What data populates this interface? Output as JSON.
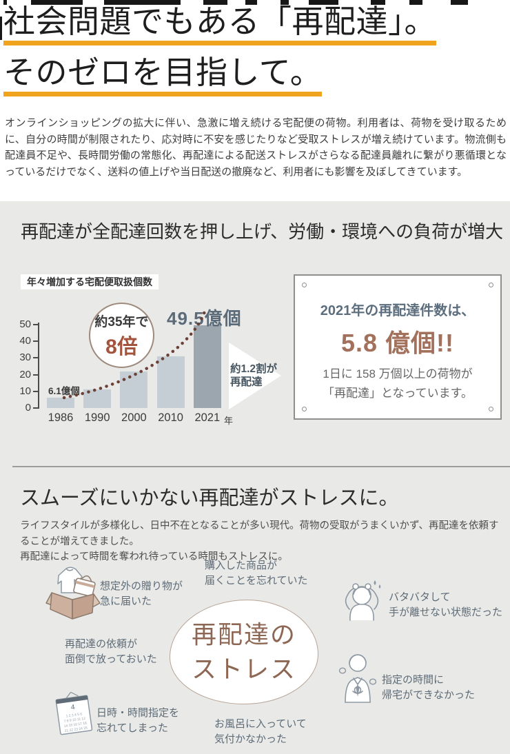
{
  "colors": {
    "accent_underline": "#f0a41e",
    "section_bg": "#e9e9e7",
    "bar": "#c5ced5",
    "bar_highlight": "#9ba6ae",
    "trend_dots": "#6b4036",
    "rust_accent": "#a4543c",
    "stat_number": "#a3705c",
    "stat_title": "#5c6e7e",
    "illustration_stroke": "#8d98a3"
  },
  "hero": {
    "title_line1": "社会問題でもある「再配達」。",
    "title_line2": "そのゼロを目指して。",
    "intro": "オンラインショッピングの拡大に伴い、急激に増え続ける宅配便の荷物。利用者は、荷物を受け取るために、自分の時間が制限されたり、応対時に不安を感じたりなど受取ストレスが増え続けています。物流側も配達員不足や、長時間労働の常態化、再配達による配送ストレスがさらなる配達員離れに繋がり悪循環となっているだけでなく、送料の値上げや当日配送の撤廃など、利用者にも影響を及ぼしてきています。"
  },
  "section1": {
    "heading": "再配達が全配達回数を押し上げ、労働・環境への負荷が増大",
    "chart_title": "年々増加する宅配便取扱個数",
    "first_bar_label": "6.1億個",
    "last_bar_label": "49.5億個",
    "multiplier_badge": {
      "line1": "約35年で",
      "line2": "8倍"
    },
    "arrow_note": "約1.2割が\n再配達",
    "card": {
      "line1": "2021年の再配達件数は、",
      "number": "5.8 億個!!",
      "sub": "1日に 158 万個以上の荷物が\n「再配達」となっています。"
    }
  },
  "chart_data": {
    "type": "bar",
    "title": "年々増加する宅配便取扱個数",
    "categories": [
      "1986",
      "1990",
      "2000",
      "2010",
      "2021"
    ],
    "values": [
      6.1,
      11,
      22,
      31,
      49.5
    ],
    "value_unit": "億個",
    "unit_suffix": "年",
    "ylim": [
      0,
      50
    ],
    "yticks": [
      0,
      10,
      20,
      30,
      40,
      50
    ],
    "highlight_index": 4,
    "grid": false,
    "annotations": [
      "6.1億個 (1986)",
      "49.5億個 (2021)",
      "約35年で8倍",
      "約1.2割が再配達"
    ]
  },
  "section2": {
    "heading": "スムーズにいかない再配達がストレスに。",
    "body": "ライフスタイルが多様化し、日中不在となることが多い現代。荷物の受取がうまくいかず、再配達を依頼することが増えてきました。\n再配達によって時間を奪われ待っている時間もストレスに。",
    "center_label": "再配達の\nストレス",
    "stress_items": [
      {
        "text": "想定外の贈り物が\n急に届いた"
      },
      {
        "text": "購入した商品が\n届くことを忘れていた"
      },
      {
        "text": "バタバタして\n手が離せない状態だった"
      },
      {
        "text": "再配達の依頼が\n面倒で放っておいた"
      },
      {
        "text": "指定の時間に\n帰宅ができなかった"
      },
      {
        "text": "日時・時間指定を\n忘れてしまった"
      },
      {
        "text": "お風呂に入っていて\n気付かなかった"
      }
    ]
  }
}
